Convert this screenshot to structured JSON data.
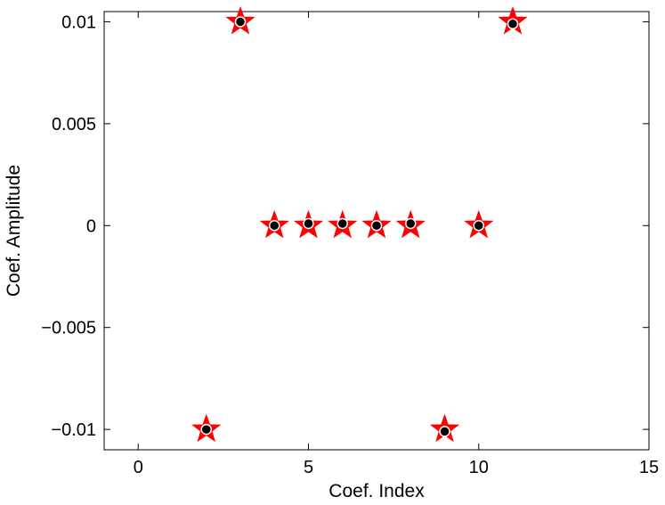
{
  "chart_data": {
    "type": "scatter",
    "title": "",
    "xlabel": "Coef. Index",
    "ylabel": "Coef. Amplitude",
    "xlim": [
      -1,
      15
    ],
    "ylim": [
      -0.011,
      0.0105
    ],
    "xticks": [
      0,
      5,
      10,
      15
    ],
    "xtick_labels": [
      "0",
      "5",
      "10",
      "15"
    ],
    "yticks": [
      -0.01,
      -0.005,
      0,
      0.005,
      0.01
    ],
    "ytick_labels": [
      "−0.01",
      "−0.005",
      "0",
      "0.005",
      "0.01"
    ],
    "grid": false,
    "legend": "none",
    "series": [
      {
        "marker": "star",
        "color": "#ff0000",
        "x": [
          2,
          3,
          4,
          5,
          6,
          7,
          8,
          9,
          10,
          11
        ],
        "y": [
          -0.01,
          0.01,
          0,
          0,
          0,
          0,
          0,
          -0.01,
          0,
          0.01
        ]
      },
      {
        "marker": "circle",
        "color": "#000000",
        "x": [
          2,
          3,
          4,
          5,
          6,
          7,
          8,
          9,
          10,
          11
        ],
        "y": [
          -0.01,
          0.01,
          0,
          0.0001,
          0.0001,
          0,
          0.0001,
          -0.0101,
          0,
          0.0099
        ]
      }
    ]
  }
}
